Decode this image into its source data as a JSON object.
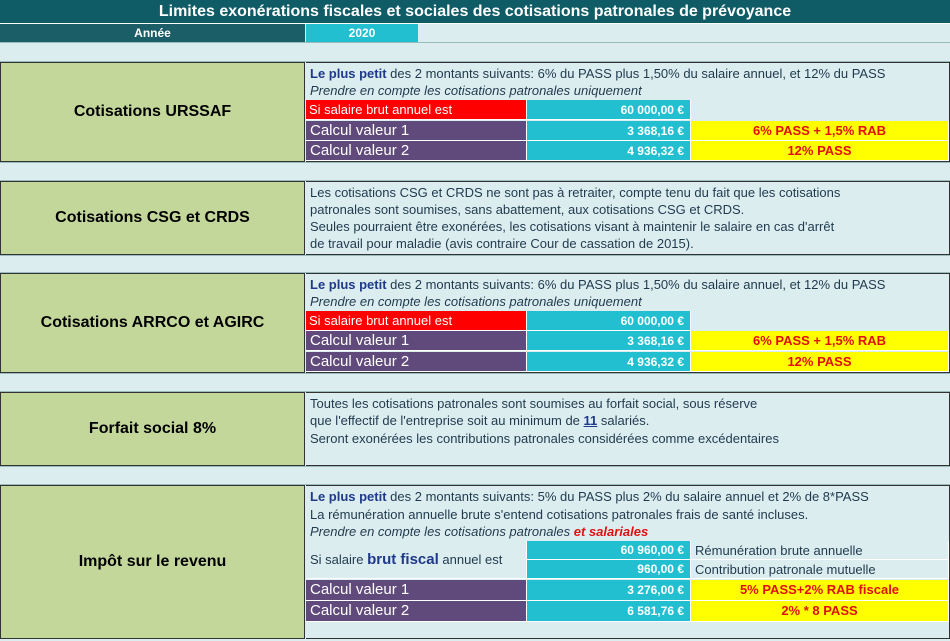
{
  "title": "Limites exonérations fiscales et sociales des cotisations patronales de prévoyance",
  "year_label": "Année",
  "year_value": "2020",
  "urssaf": {
    "label": "Cotisations URSSAF",
    "line1_bold": "Le plus petit",
    "line1_rest": " des 2 montants suivants: 6% du PASS plus 1,50% du salaire annuel, et 12% du PASS",
    "line2": "Prendre en compte les cotisations patronales uniquement",
    "salary_label": "Si salaire brut annuel est",
    "salary_value": "60 000,00 €",
    "calc1_label": "Calcul valeur 1",
    "calc1_value": "3 368,16 €",
    "calc1_formula": "6% PASS + 1,5% RAB",
    "calc2_label": "Calcul valeur 2",
    "calc2_value": "4 936,32 €",
    "calc2_formula": "12% PASS"
  },
  "csg": {
    "label": "Cotisations CSG et CRDS",
    "lines": [
      "Les cotisations CSG et CRDS ne sont pas à retraiter, compte tenu du fait que les cotisations",
      "patronales sont soumises, sans abattement, aux cotisations CSG et CRDS.",
      "Seules pourraient être exonérées, les cotisations visant à maintenir le salaire en cas d'arrêt",
      "de travail pour maladie (avis contraire Cour de cassation de 2015)."
    ]
  },
  "arrco": {
    "label": "Cotisations ARRCO et AGIRC",
    "line1_bold": "Le plus petit",
    "line1_rest": " des 2 montants suivants: 6% du PASS plus 1,50% du salaire annuel, et 12% du PASS",
    "line2": "Prendre en compte les cotisations patronales uniquement",
    "salary_label": "Si salaire brut annuel est",
    "salary_value": "60 000,00 €",
    "calc1_label": "Calcul valeur 1",
    "calc1_value": "3 368,16 €",
    "calc1_formula": "6% PASS + 1,5% RAB",
    "calc2_label": "Calcul valeur 2",
    "calc2_value": "4 936,32 €",
    "calc2_formula": "12% PASS"
  },
  "forfait": {
    "label": "Forfait social 8%",
    "line1": "Toutes les cotisations patronales sont soumises au forfait social, sous réserve",
    "line2_a": "que l'effectif de l'entreprise soit au minimum de ",
    "line2_num": "11",
    "line2_b": " salariés.",
    "line3": "Seront exonérées les contributions patronales considérées comme excédentaires"
  },
  "impot": {
    "label": "Impôt sur le revenu",
    "line1_bold": "Le plus petit",
    "line1_rest": " des 2 montants suivants: 5% du PASS plus 2% du salaire annuel et 2% de 8*PASS",
    "line2": "La rémunération annuelle brute s'entend cotisations patronales frais de santé incluses.",
    "line3_a": "Prendre en compte les cotisations patronales ",
    "line3_b": " et salariales",
    "salary_a": "Si salaire ",
    "salary_b": "brut fiscal",
    "salary_c": " annuel est",
    "rem_value": "60 960,00 €",
    "rem_label": "Rémunération brute annuelle",
    "contrib_value": "960,00 €",
    "contrib_label": "Contribution patronale mutuelle",
    "calc1_label": "Calcul valeur 1",
    "calc1_value": "3 276,00 €",
    "calc1_formula": "5% PASS+2% RAB fiscale",
    "calc2_label": "Calcul valeur 2",
    "calc2_value": "6 581,76 €",
    "calc2_formula": "2% * 8 PASS"
  }
}
